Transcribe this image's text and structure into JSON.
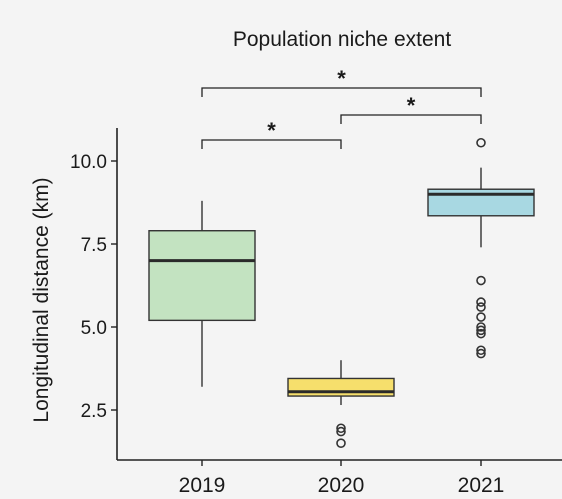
{
  "chart_data": {
    "type": "box",
    "title": "Population niche extent",
    "xlabel": "",
    "ylabel": "Longitudinal distance (km)",
    "categories": [
      "2019",
      "2020",
      "2021"
    ],
    "ylim": [
      1.3,
      11.0
    ],
    "yticks": [
      2.5,
      5.0,
      7.5,
      10.0
    ],
    "ytick_labels": [
      "2.5",
      "5.0",
      "7.5",
      "10.0"
    ],
    "grid": false,
    "boxes": [
      {
        "category": "2019",
        "whisker_low": 3.2,
        "q1": 5.2,
        "median": 7.0,
        "q3": 7.9,
        "whisker_high": 8.8,
        "outliers": [],
        "color": "#c3e3c1"
      },
      {
        "category": "2020",
        "whisker_low": 2.65,
        "q1": 2.92,
        "median": 3.05,
        "q3": 3.45,
        "whisker_high": 4.0,
        "outliers": [
          1.95,
          1.85,
          1.5
        ],
        "color": "#f6df6c"
      },
      {
        "category": "2021",
        "whisker_low": 7.4,
        "q1": 8.35,
        "median": 9.0,
        "q3": 9.15,
        "whisker_high": 9.8,
        "outliers": [
          10.55,
          6.4,
          5.75,
          5.6,
          5.3,
          5.0,
          4.9,
          4.8,
          4.3,
          4.2
        ],
        "color": "#a8d8e2"
      }
    ],
    "significance": [
      {
        "from": "2019",
        "to": "2020",
        "label": "*"
      },
      {
        "from": "2020",
        "to": "2021",
        "label": "*"
      },
      {
        "from": "2019",
        "to": "2021",
        "label": "*"
      }
    ]
  }
}
